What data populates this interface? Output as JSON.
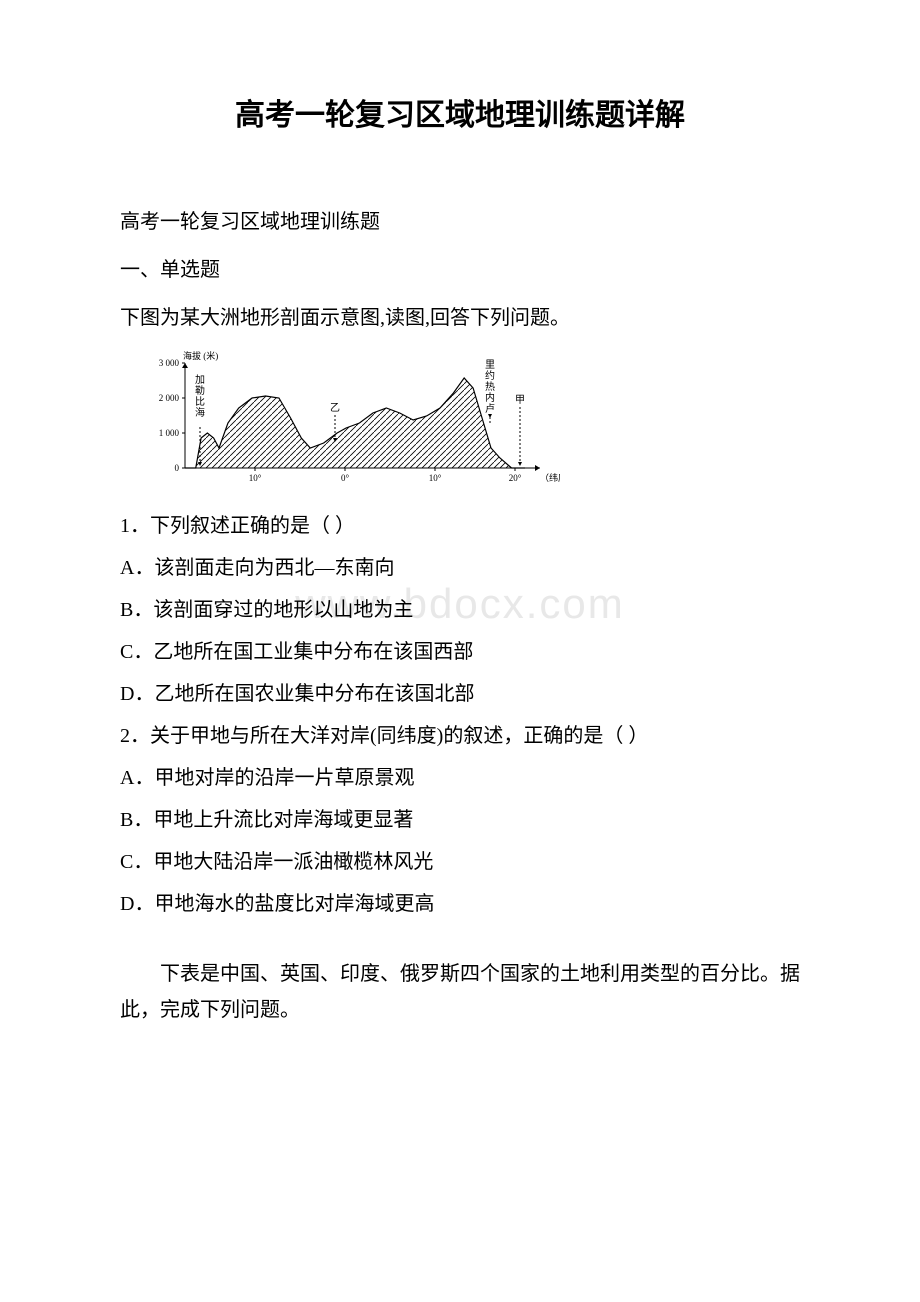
{
  "title": "高考一轮复习区域地理训练题详解",
  "subtitle": "高考一轮复习区域地理训练题",
  "section1": "一、单选题",
  "intro1": "下图为某大洲地形剖面示意图,读图,回答下列问题。",
  "watermark": "www.bdocx.com",
  "q1": {
    "stem": "1．下列叙述正确的是（  ）",
    "a": "A．该剖面走向为西北—东南向",
    "b": "B．该剖面穿过的地形以山地为主",
    "c": "C．乙地所在国工业集中分布在该国西部",
    "d": "D．乙地所在国农业集中分布在该国北部"
  },
  "q2": {
    "stem": "2．关于甲地与所在大洋对岸(同纬度)的叙述，正确的是（  ）",
    "a": "A．甲地对岸的沿岸一片草原景观",
    "b": "B．甲地上升流比对岸海域更显著",
    "c": "C．甲地大陆沿岸一派油橄榄林风光",
    "d": "D．甲地海水的盐度比对岸海域更高"
  },
  "intro2": "下表是中国、英国、印度、俄罗斯四个国家的土地利用类型的百分比。据此，完成下列问题。",
  "chart": {
    "type": "profile",
    "y_axis_label": "海拔 (米)",
    "y_ticks": [
      "0",
      "1 000",
      "2 000",
      "3 000"
    ],
    "x_axis_label": "（纬度）",
    "x_ticks": [
      "10°",
      "0°",
      "10°",
      "20°"
    ],
    "labels": {
      "left": "加勒比海",
      "mid": "乙",
      "right1": "里约热内卢",
      "right2": "甲"
    },
    "colors": {
      "line": "#000000",
      "bg": "#ffffff",
      "text": "#000000"
    },
    "font_size_axis": 9,
    "font_size_label": 10,
    "profile_points": [
      [
        0,
        0
      ],
      [
        12,
        0
      ],
      [
        18,
        30
      ],
      [
        25,
        35
      ],
      [
        32,
        30
      ],
      [
        38,
        20
      ],
      [
        48,
        45
      ],
      [
        60,
        60
      ],
      [
        75,
        70
      ],
      [
        90,
        72
      ],
      [
        105,
        70
      ],
      [
        118,
        50
      ],
      [
        130,
        30
      ],
      [
        140,
        20
      ],
      [
        155,
        25
      ],
      [
        170,
        35
      ],
      [
        180,
        40
      ],
      [
        195,
        45
      ],
      [
        210,
        55
      ],
      [
        225,
        60
      ],
      [
        240,
        55
      ],
      [
        255,
        48
      ],
      [
        270,
        52
      ],
      [
        285,
        60
      ],
      [
        300,
        75
      ],
      [
        312,
        90
      ],
      [
        322,
        80
      ],
      [
        332,
        50
      ],
      [
        342,
        20
      ],
      [
        352,
        10
      ],
      [
        365,
        0
      ],
      [
        380,
        0
      ]
    ],
    "hatch_spacing": 6
  }
}
